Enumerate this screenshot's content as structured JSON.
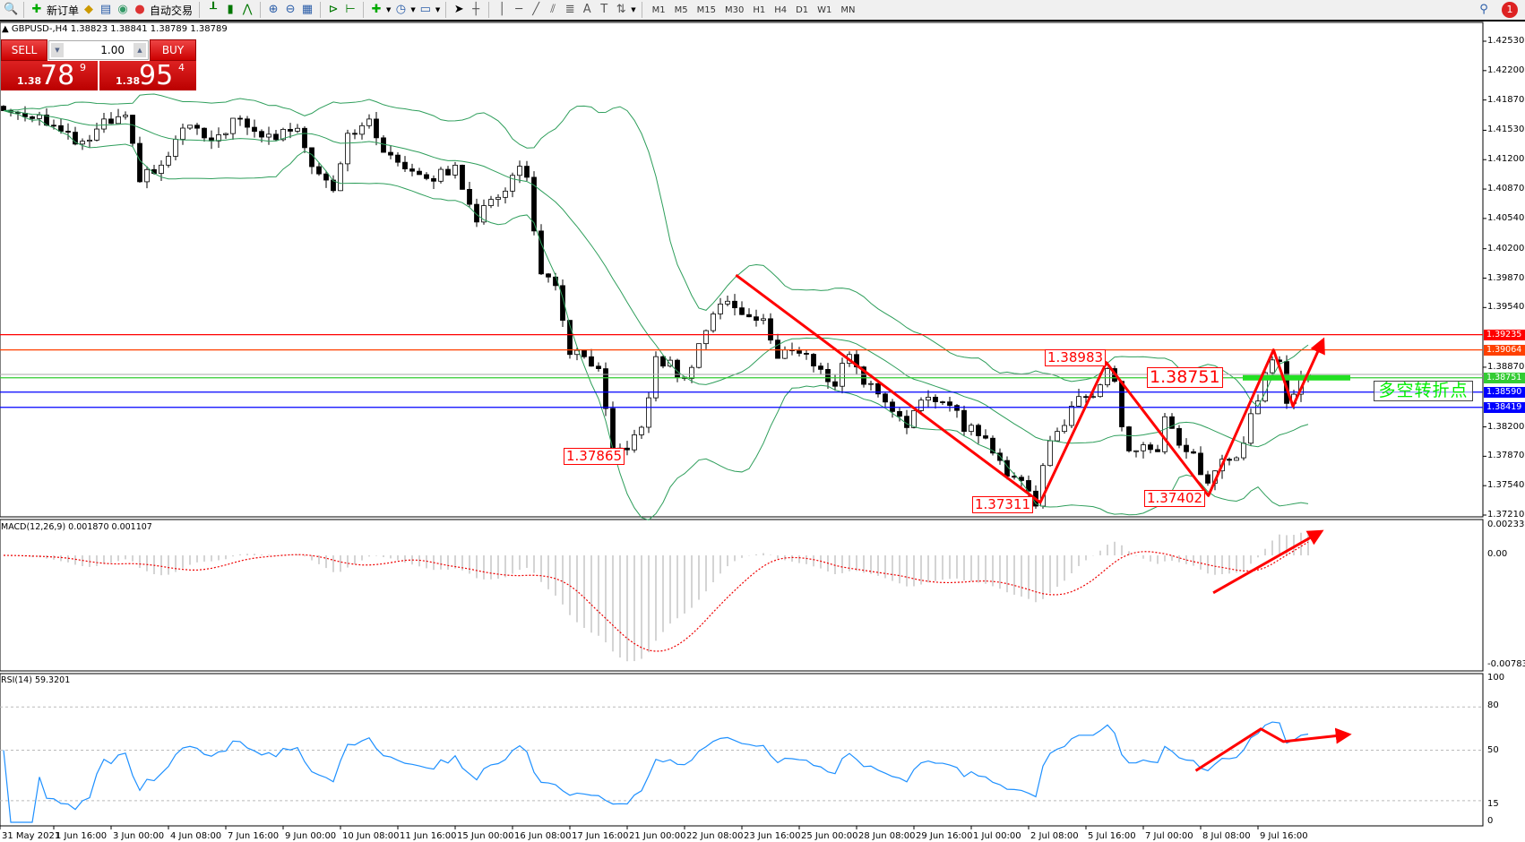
{
  "toolbar": {
    "new_order": "新订单",
    "auto_trading": "自动交易",
    "timeframes": [
      "M1",
      "M5",
      "M15",
      "M30",
      "H1",
      "H4",
      "D1",
      "W1",
      "MN"
    ],
    "notification_count": "1"
  },
  "chart": {
    "title": "GBPUSD-,H4  1.38823 1.38841 1.38789 1.38789"
  },
  "trade_panel": {
    "sell_label": "SELL",
    "buy_label": "BUY",
    "lot": "1.00",
    "sell_small": "1.38",
    "sell_big": "78",
    "sell_tick": "9",
    "buy_small": "1.38",
    "buy_big": "95",
    "buy_tick": "4"
  },
  "price_axis": [
    "1.42530",
    "1.42200",
    "1.41870",
    "1.41530",
    "1.41200",
    "1.40870",
    "1.40540",
    "1.40200",
    "1.39870",
    "1.39540",
    "1.38870",
    "1.38200",
    "1.37870",
    "1.37540",
    "1.37210"
  ],
  "levels": [
    {
      "price": "1.39235",
      "color": "#ff0000"
    },
    {
      "price": "1.39064",
      "color": "#ff4000"
    },
    {
      "price": "1.38751",
      "color": "#33cc33"
    },
    {
      "price": "1.38590",
      "color": "#0000ff"
    },
    {
      "price": "1.38419",
      "color": "#0000ff"
    }
  ],
  "annotations": {
    "a1": "1.37865",
    "a2": "1.37311",
    "a3": "1.38983",
    "a4": "1.38751",
    "a5": "1.37402",
    "zone_text": "多空转折点"
  },
  "macd": {
    "label": "MACD(12,26,9) 0.001870 0.001107",
    "axis": [
      "0.002332",
      "0.00",
      "-0.007836"
    ]
  },
  "rsi": {
    "label": "RSI(14) 59.3201",
    "axis": [
      "100",
      "80",
      "50",
      "15",
      "0"
    ]
  },
  "dates": [
    "31 May 2021",
    "1 Jun 16:00",
    "3 Jun 00:00",
    "4 Jun 08:00",
    "7 Jun 16:00",
    "9 Jun 00:00",
    "10 Jun 08:00",
    "11 Jun 16:00",
    "15 Jun 00:00",
    "16 Jun 08:00",
    "17 Jun 16:00",
    "21 Jun 00:00",
    "22 Jun 08:00",
    "23 Jun 16:00",
    "25 Jun 00:00",
    "28 Jun 08:00",
    "29 Jun 16:00",
    "1 Jul 00:00",
    "2 Jul 08:00",
    "5 Jul 16:00",
    "7 Jul 00:00",
    "8 Jul 08:00",
    "9 Jul 16:00"
  ],
  "chart_data": {
    "type": "candlestick",
    "symbol": "GBPUSD-",
    "timeframe": "H4",
    "ylim": [
      1.3721,
      1.4253
    ],
    "price_path": [
      [
        0,
        1.4175
      ],
      [
        5,
        1.417
      ],
      [
        8,
        1.415
      ],
      [
        11,
        1.4135
      ],
      [
        14,
        1.416
      ],
      [
        17,
        1.4165
      ],
      [
        19,
        1.41
      ],
      [
        22,
        1.411
      ],
      [
        24,
        1.414
      ],
      [
        26,
        1.416
      ],
      [
        29,
        1.4135
      ],
      [
        32,
        1.4165
      ],
      [
        35,
        1.415
      ],
      [
        38,
        1.4145
      ],
      [
        41,
        1.416
      ],
      [
        43,
        1.4115
      ],
      [
        46,
        1.409
      ],
      [
        48,
        1.415
      ],
      [
        51,
        1.416
      ],
      [
        54,
        1.412
      ],
      [
        57,
        1.411
      ],
      [
        60,
        1.41
      ],
      [
        63,
        1.411
      ],
      [
        66,
        1.4055
      ],
      [
        69,
        1.408
      ],
      [
        72,
        1.411
      ],
      [
        73,
        1.41
      ],
      [
        75,
        1.399
      ],
      [
        77,
        1.3975
      ],
      [
        79,
        1.3905
      ],
      [
        81,
        1.3895
      ],
      [
        83,
        1.388
      ],
      [
        85,
        1.379
      ],
      [
        87,
        1.38
      ],
      [
        89,
        1.3815
      ],
      [
        91,
        1.3895
      ],
      [
        93,
        1.389
      ],
      [
        95,
        1.387
      ],
      [
        97,
        1.3915
      ],
      [
        100,
        1.396
      ],
      [
        102,
        1.3955
      ],
      [
        104,
        1.3945
      ],
      [
        106,
        1.394
      ],
      [
        108,
        1.3895
      ],
      [
        110,
        1.391
      ],
      [
        112,
        1.39
      ],
      [
        114,
        1.388
      ],
      [
        116,
        1.387
      ],
      [
        118,
        1.3905
      ],
      [
        120,
        1.387
      ],
      [
        122,
        1.386
      ],
      [
        124,
        1.384
      ],
      [
        126,
        1.3825
      ],
      [
        128,
        1.3845
      ],
      [
        130,
        1.385
      ],
      [
        132,
        1.385
      ],
      [
        134,
        1.382
      ],
      [
        136,
        1.3815
      ],
      [
        138,
        1.379
      ],
      [
        140,
        1.377
      ],
      [
        142,
        1.376
      ],
      [
        144,
        1.3735
      ],
      [
        146,
        1.381
      ],
      [
        148,
        1.3825
      ],
      [
        150,
        1.385
      ],
      [
        152,
        1.386
      ],
      [
        154,
        1.3885
      ],
      [
        155,
        1.387
      ],
      [
        156,
        1.382
      ],
      [
        157,
        1.379
      ],
      [
        159,
        1.38
      ],
      [
        161,
        1.379
      ],
      [
        162,
        1.383
      ],
      [
        164,
        1.3795
      ],
      [
        166,
        1.3785
      ],
      [
        168,
        1.3755
      ],
      [
        170,
        1.3785
      ],
      [
        172,
        1.378
      ],
      [
        174,
        1.383
      ],
      [
        176,
        1.388
      ],
      [
        177,
        1.3895
      ],
      [
        178,
        1.389
      ],
      [
        179,
        1.385
      ],
      [
        180,
        1.386
      ],
      [
        181,
        1.388
      ],
      [
        182,
        1.38789
      ]
    ],
    "indicators": [
      "Bollinger Bands(20,2)",
      "MACD(12,26,9)",
      "RSI(14)"
    ],
    "rsi_levels": [
      80,
      50,
      15
    ]
  }
}
